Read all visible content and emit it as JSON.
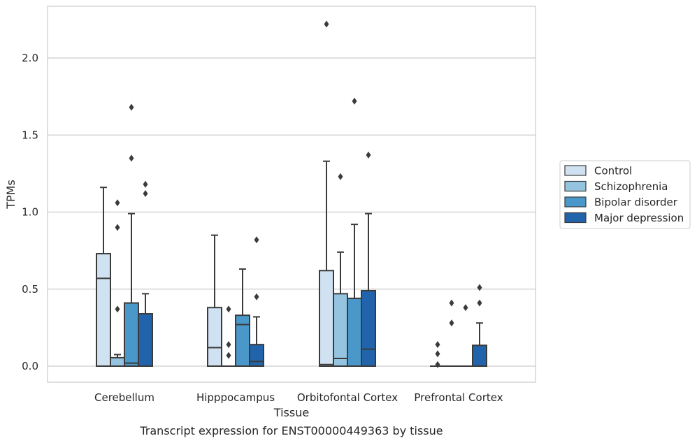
{
  "chart_data": {
    "type": "box",
    "xlabel": "Tissue",
    "ylabel": "TPMs",
    "caption": "Transcript expression for ENST00000449363 by tissue",
    "ylim": [
      -0.11,
      2.35
    ],
    "yticks": [
      0.0,
      0.5,
      1.0,
      1.5,
      2.0
    ],
    "ytick_labels": [
      "0.0",
      "0.5",
      "1.0",
      "1.5",
      "2.0"
    ],
    "grid": true,
    "legend_placement": "right",
    "categories": [
      "Cerebellum",
      "Hipppocampus",
      "Orbitofontal Cortex",
      "Prefrontal Cortex"
    ],
    "series": [
      {
        "name": "Control",
        "color": "#d0e1f2",
        "boxes": [
          {
            "q1": 0.0,
            "median": 0.57,
            "q3": 0.73,
            "whisker_low": 0.0,
            "whisker_high": 1.16,
            "outliers": []
          },
          {
            "q1": 0.0,
            "median": 0.12,
            "q3": 0.38,
            "whisker_low": 0.0,
            "whisker_high": 0.85,
            "outliers": []
          },
          {
            "q1": 0.0,
            "median": 0.01,
            "q3": 0.62,
            "whisker_low": 0.0,
            "whisker_high": 1.33,
            "outliers": [
              2.22
            ]
          },
          {
            "q1": 0.0,
            "median": 0.0,
            "q3": 0.0,
            "whisker_low": 0.0,
            "whisker_high": 0.0,
            "outliers": [
              0.01,
              0.08,
              0.14
            ]
          }
        ]
      },
      {
        "name": "Schizophrenia",
        "color": "#94c4df",
        "boxes": [
          {
            "q1": 0.0,
            "median": 0.0,
            "q3": 0.055,
            "whisker_low": 0.0,
            "whisker_high": 0.075,
            "outliers": [
              0.37,
              0.9,
              1.06
            ]
          },
          {
            "q1": 0.0,
            "median": 0.0,
            "q3": 0.0,
            "whisker_low": 0.0,
            "whisker_high": 0.0,
            "outliers": [
              0.07,
              0.14,
              0.37
            ]
          },
          {
            "q1": 0.0,
            "median": 0.05,
            "q3": 0.47,
            "whisker_low": 0.0,
            "whisker_high": 0.74,
            "outliers": [
              1.23
            ]
          },
          {
            "q1": 0.0,
            "median": 0.0,
            "q3": 0.0,
            "whisker_low": 0.0,
            "whisker_high": 0.0,
            "outliers": [
              0.28,
              0.41
            ]
          }
        ]
      },
      {
        "name": "Bipolar disorder",
        "color": "#4a98c9",
        "boxes": [
          {
            "q1": 0.0,
            "median": 0.02,
            "q3": 0.41,
            "whisker_low": 0.0,
            "whisker_high": 0.99,
            "outliers": [
              1.35,
              1.68
            ]
          },
          {
            "q1": 0.0,
            "median": 0.27,
            "q3": 0.33,
            "whisker_low": 0.0,
            "whisker_high": 0.63,
            "outliers": []
          },
          {
            "q1": 0.0,
            "median": 0.0,
            "q3": 0.44,
            "whisker_low": 0.0,
            "whisker_high": 0.92,
            "outliers": [
              1.72
            ]
          },
          {
            "q1": 0.0,
            "median": 0.0,
            "q3": 0.0,
            "whisker_low": 0.0,
            "whisker_high": 0.0,
            "outliers": [
              0.38
            ]
          }
        ]
      },
      {
        "name": "Major depression",
        "color": "#2164ab",
        "boxes": [
          {
            "q1": 0.0,
            "median": 0.0,
            "q3": 0.34,
            "whisker_low": 0.0,
            "whisker_high": 0.47,
            "outliers": [
              1.12,
              1.18
            ]
          },
          {
            "q1": 0.0,
            "median": 0.03,
            "q3": 0.14,
            "whisker_low": 0.0,
            "whisker_high": 0.32,
            "outliers": [
              0.45,
              0.82
            ]
          },
          {
            "q1": 0.0,
            "median": 0.11,
            "q3": 0.49,
            "whisker_low": 0.0,
            "whisker_high": 0.99,
            "outliers": [
              1.37
            ]
          },
          {
            "q1": 0.0,
            "median": 0.0,
            "q3": 0.135,
            "whisker_low": 0.0,
            "whisker_high": 0.28,
            "outliers": [
              0.41,
              0.51
            ]
          }
        ]
      }
    ]
  }
}
